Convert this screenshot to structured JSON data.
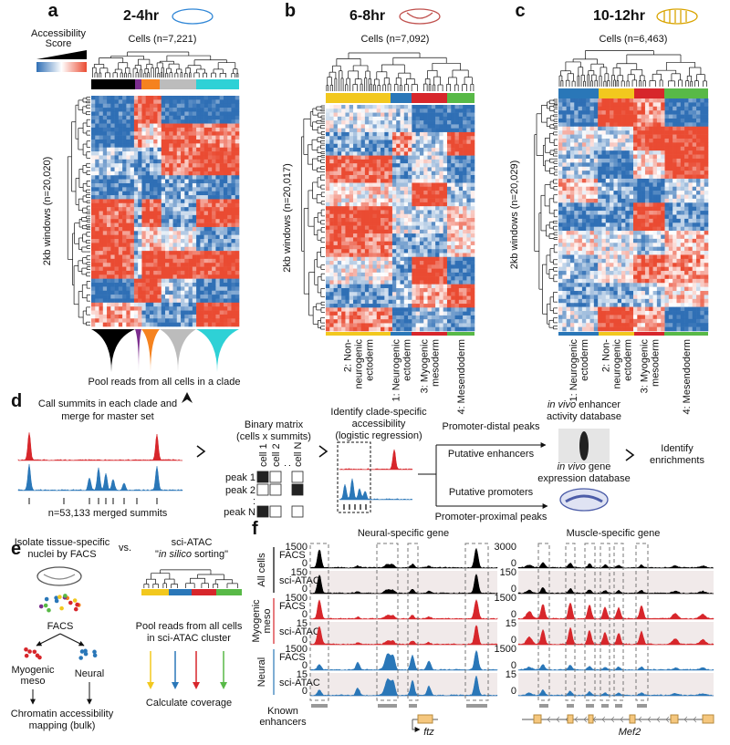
{
  "figure": {
    "a": {
      "letter": "a",
      "title": "2-4hr",
      "title_color": "#2f86d6",
      "legend_lines": [
        "Accessibility",
        "Score"
      ],
      "cells": "Cells (n=7,221)",
      "windows": "2kb windows (n=20,020)",
      "clade_colors": [
        "#000000",
        "#7b2d8e",
        "#f5821f",
        "#bcbcbc",
        "#2ed1d6"
      ],
      "pool": "Pool reads from all cells in a clade"
    },
    "b": {
      "letter": "b",
      "title": "6-8hr",
      "title_color": "#c0504d",
      "cells": "Cells (n=7,092)",
      "windows": "2kb windows (n=20,017)",
      "clusters": [
        {
          "lines": [
            "2: Non-",
            "neurogenic",
            "ectoderm"
          ],
          "color": "#f2c81e"
        },
        {
          "lines": [
            "1: Neurogenic",
            "ectoderm"
          ],
          "color": "#2a77b8"
        },
        {
          "lines": [
            "3: Myogenic",
            "mesoderm"
          ],
          "color": "#d7262b"
        },
        {
          "lines": [
            "4: Mesendoderm"
          ],
          "color": "#58b947"
        }
      ]
    },
    "c": {
      "letter": "c",
      "title": "10-12hr",
      "title_color": "#d9a400",
      "cells": "Cells (n=6,463)",
      "windows": "2kb windows (n=20,029)",
      "clusters": [
        {
          "lines": [
            "1: Neurogenic",
            "ectoderm"
          ],
          "color": "#2a77b8"
        },
        {
          "lines": [
            "2: Non-",
            "neurogenic",
            "ectoderm"
          ],
          "color": "#f2c81e"
        },
        {
          "lines": [
            "3: Myogenic",
            "mesoderm"
          ],
          "color": "#d7262b"
        },
        {
          "lines": [
            "4: Mesendoderm"
          ],
          "color": "#58b947"
        }
      ]
    },
    "d": {
      "letter": "d",
      "summit_lines": [
        "Call summits in each clade and",
        "merge for master set"
      ],
      "summit_count": "n=53,133 merged summits",
      "matrix_lines": [
        "Binary matrix",
        "(cells x summits)"
      ],
      "matrix_cols": [
        "cell 1",
        "cell 2",
        ":",
        "cell N"
      ],
      "matrix_rows": [
        "peak 1",
        "peak 2",
        ":",
        "peak N"
      ],
      "regression_lines": [
        "Identify clade-specific",
        "accessibility",
        "(logistic regression)"
      ],
      "distal": "Promoter-distal peaks",
      "enhancers": "Putative enhancers",
      "promoters": "Putative promoters",
      "proximal": "Promoter-proximal peaks",
      "enhancer_db": {
        "italic": "in vivo",
        "rest": " enhancer",
        "line2": "activity database"
      },
      "expression_db": {
        "italic": "in vivo",
        "rest": " gene",
        "line2": "expression database"
      },
      "enrich_lines": [
        "Identify",
        "enrichments"
      ]
    },
    "e": {
      "letter": "e",
      "facs_lines": [
        "Isolate tissue-specific",
        "nuclei by FACS"
      ],
      "vs": "vs.",
      "sci": "sci-ATAC",
      "sorting": {
        "open": "\"",
        "italic": "in silico",
        "close": " sorting\""
      },
      "facs": "FACS",
      "myo_lines": [
        "Myogenic",
        "meso"
      ],
      "neural": "Neural",
      "bulk_lines": [
        "Chromatin accessibility",
        "mapping (bulk)"
      ],
      "pool_lines": [
        "Pool reads from all cells",
        "in sci-ATAC cluster"
      ],
      "coverage": "Calculate coverage",
      "cluster_colors": [
        "#f2c81e",
        "#2a77b8",
        "#d7262b",
        "#58b947"
      ]
    },
    "f": {
      "letter": "f",
      "left_title": "Neural-specific gene",
      "right_title": "Muscle-specific gene",
      "groups": [
        {
          "lines": [
            "All cells"
          ],
          "color": "#000000"
        },
        {
          "lines": [
            "Myogenic",
            "meso"
          ],
          "color": "#d7262b"
        },
        {
          "lines": [
            "Neural"
          ],
          "color": "#2a77b8"
        }
      ],
      "tracks": [
        {
          "assay": "FACS",
          "left_ticks": [
            1500,
            0
          ],
          "right_ticks": [
            3000,
            0
          ]
        },
        {
          "assay": "sci-ATAC",
          "left_ticks": [
            150,
            0
          ],
          "right_ticks": [
            150,
            0
          ]
        },
        {
          "assay": "FACS",
          "left_ticks": [
            1500,
            0
          ],
          "right_ticks": [
            1500,
            0
          ]
        },
        {
          "assay": "sci-ATAC",
          "left_ticks": [
            15,
            0
          ],
          "right_ticks": [
            15,
            0
          ]
        },
        {
          "assay": "FACS",
          "left_ticks": [
            1500,
            0
          ],
          "right_ticks": [
            1500,
            0
          ]
        },
        {
          "assay": "sci-ATAC",
          "left_ticks": [
            15,
            0
          ],
          "right_ticks": [
            15,
            0
          ]
        }
      ],
      "known_lines": [
        "Known",
        "enhancers"
      ],
      "left_gene": "ftz",
      "right_gene": "Mef2"
    }
  }
}
